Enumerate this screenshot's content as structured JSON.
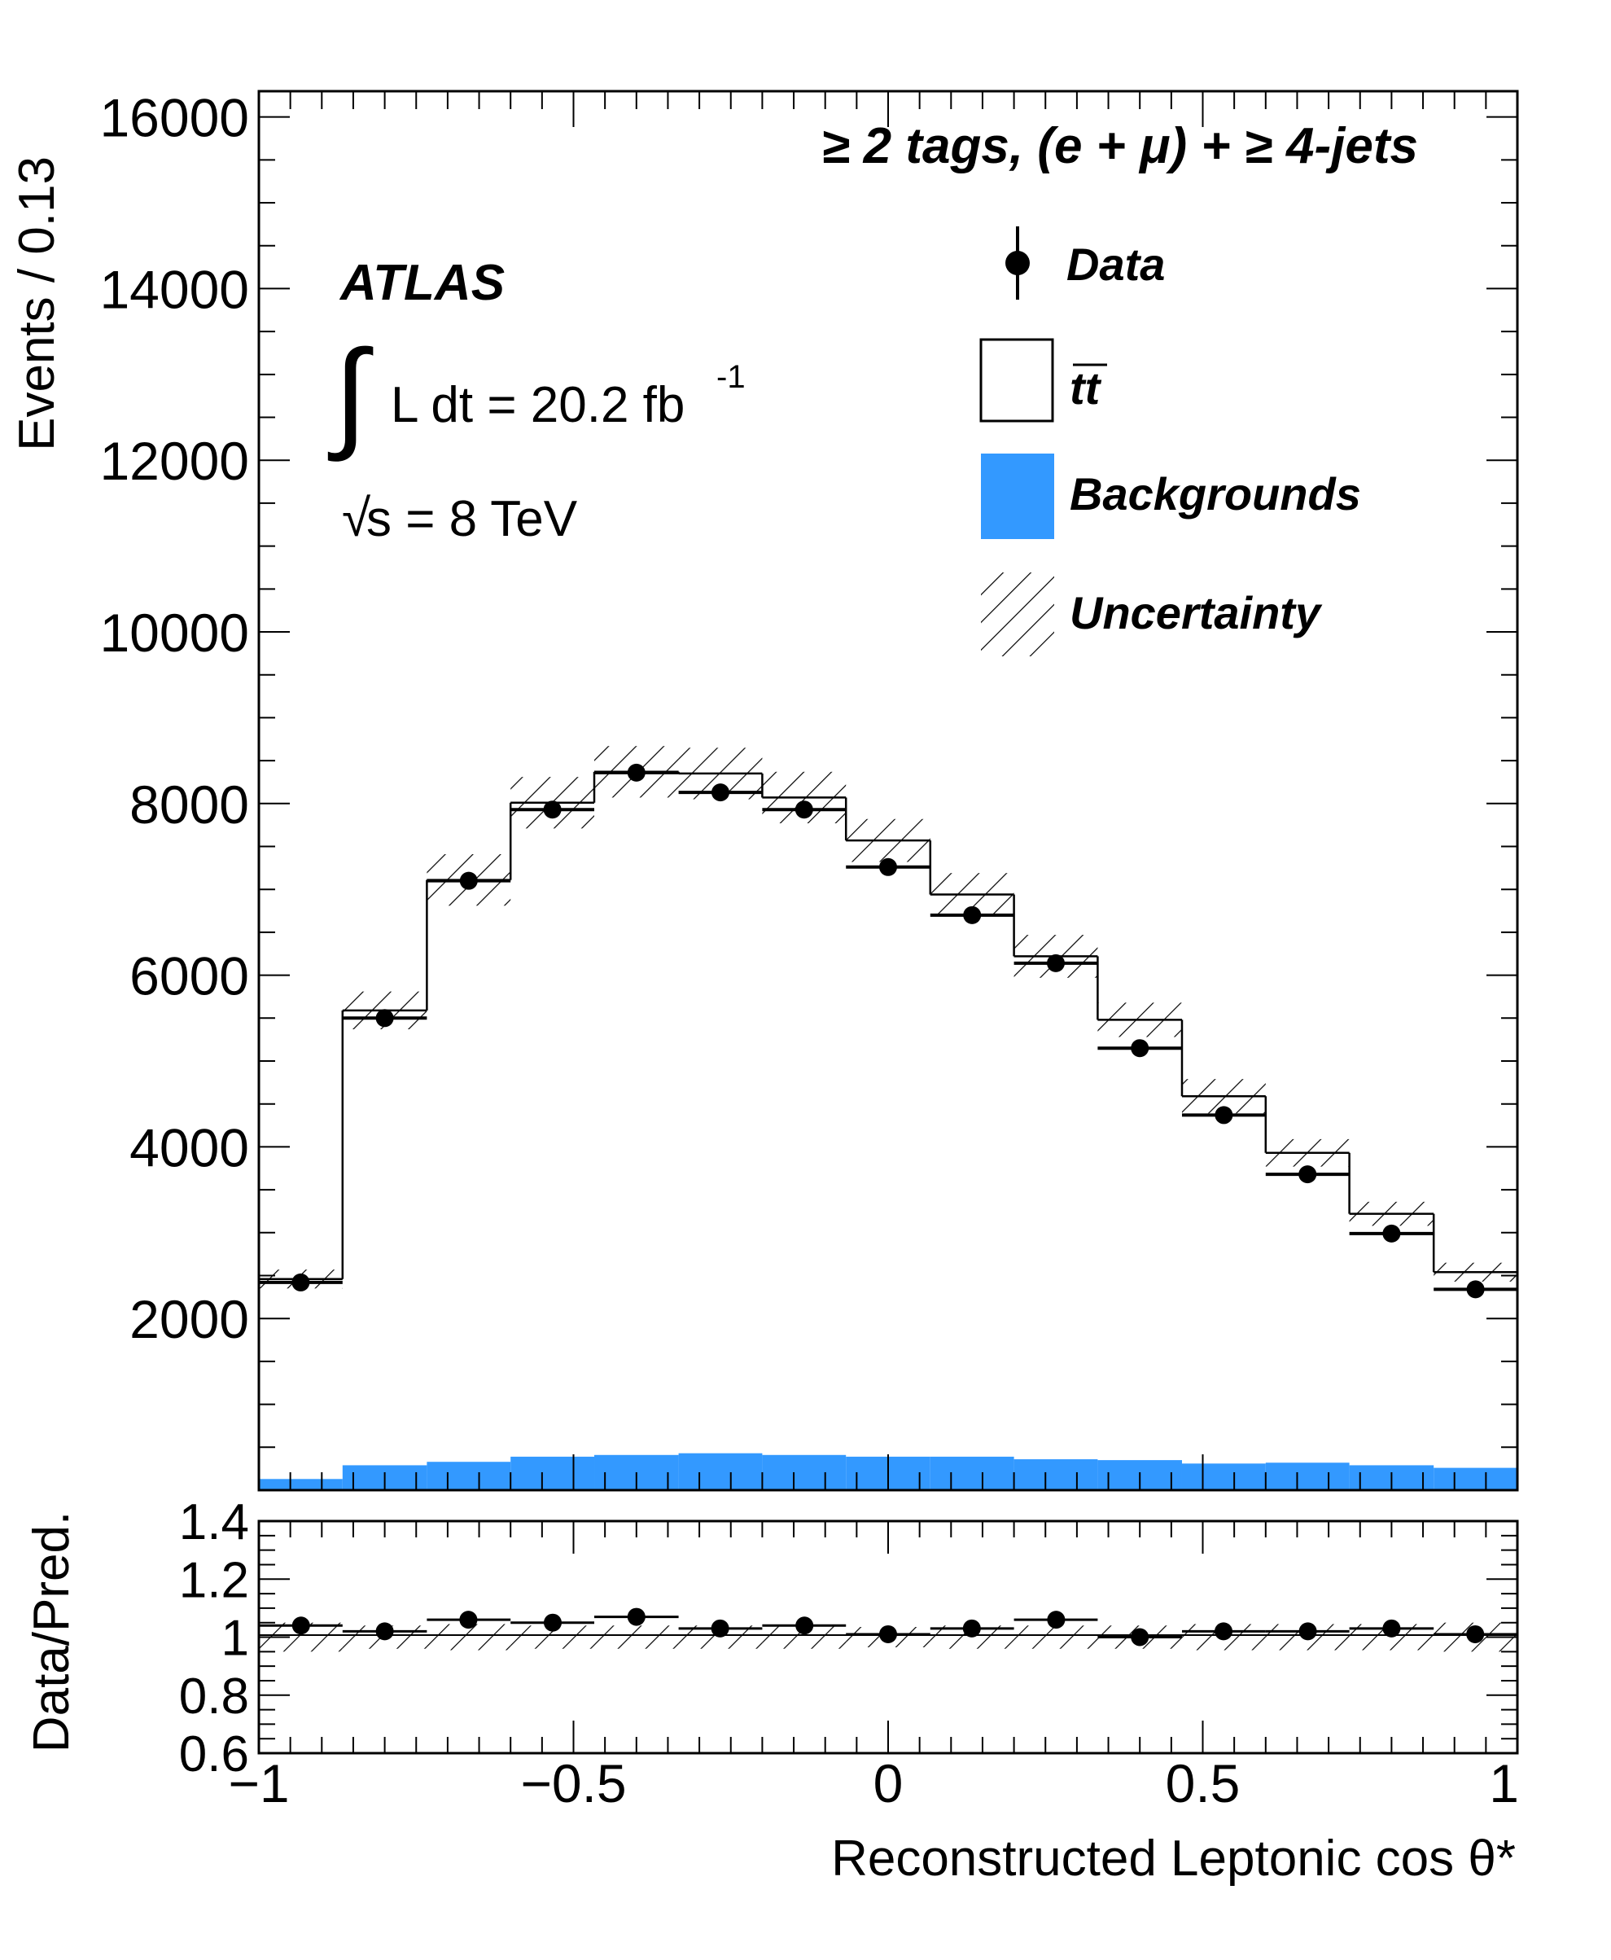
{
  "chart_data": [
    {
      "type": "bar",
      "title": "",
      "xlabel": "Reconstructed Leptonic cos θ*",
      "ylabel": "Events / 0.13",
      "xlim": [
        -1,
        1
      ],
      "ylim": [
        0,
        16300
      ],
      "yticks": [
        "2000",
        "4000",
        "6000",
        "8000",
        "10000",
        "12000",
        "14000",
        "16000"
      ],
      "bin_edges": [
        -1,
        -0.867,
        -0.733,
        -0.6,
        -0.467,
        -0.333,
        -0.2,
        -0.067,
        0.067,
        0.2,
        0.333,
        0.467,
        0.6,
        0.733,
        0.867,
        1
      ],
      "series": [
        {
          "name": "Data",
          "kind": "points",
          "values": [
            2420,
            5500,
            7100,
            7930,
            8360,
            8130,
            7930,
            7260,
            6700,
            6140,
            5150,
            4370,
            3680,
            2990,
            2340
          ]
        },
        {
          "name": "tt",
          "kind": "histogram",
          "values": [
            2330,
            5300,
            6780,
            7620,
            7960,
            7920,
            7660,
            7180,
            6550,
            5860,
            5130,
            4280,
            3610,
            2930,
            2280
          ]
        },
        {
          "name": "Backgrounds",
          "kind": "filled",
          "color": "#3399ff",
          "values": [
            130,
            290,
            330,
            390,
            410,
            430,
            410,
            390,
            390,
            360,
            350,
            310,
            320,
            290,
            260
          ]
        },
        {
          "name": "Uncertainty",
          "kind": "hatched",
          "values": [
            110,
            220,
            300,
            300,
            300,
            300,
            300,
            250,
            250,
            250,
            200,
            200,
            160,
            140,
            110
          ]
        }
      ],
      "legend": {
        "position": "top-right",
        "entries": [
          "Data",
          "tt",
          "Backgrounds",
          "Uncertainty"
        ]
      },
      "annotations": {
        "selection": "≥ 2 tags,  (e + μ) + ≥ 4-jets",
        "experiment": "ATLAS",
        "lumi_integral": "∫",
        "lumi_text": "L dt = 20.2 fb",
        "lumi_exp": "-1",
        "energy_root": "√",
        "energy_text": "s = 8 TeV"
      }
    },
    {
      "type": "scatter",
      "title": "",
      "xlabel": "Reconstructed Leptonic cos θ*",
      "ylabel": "Data/Pred.",
      "xlim": [
        -1,
        1
      ],
      "ylim": [
        0.6,
        1.4
      ],
      "yticks": [
        "0.6",
        "0.8",
        "1",
        "1.2",
        "1.4"
      ],
      "xticks": [
        "−1",
        "−0.5",
        "0",
        "0.5",
        "1"
      ],
      "x": [
        -0.933,
        -0.8,
        -0.667,
        -0.533,
        -0.4,
        -0.267,
        -0.133,
        0.0,
        0.133,
        0.267,
        0.4,
        0.533,
        0.667,
        0.8,
        0.933
      ],
      "values": [
        1.04,
        1.02,
        1.06,
        1.05,
        1.07,
        1.03,
        1.04,
        1.01,
        1.03,
        1.06,
        1.0,
        1.02,
        1.02,
        1.03,
        1.01
      ],
      "band": {
        "name": "Uncertainty",
        "halfwidth": [
          0.05,
          0.04,
          0.045,
          0.04,
          0.04,
          0.04,
          0.04,
          0.035,
          0.04,
          0.04,
          0.04,
          0.045,
          0.045,
          0.045,
          0.05
        ]
      }
    }
  ]
}
